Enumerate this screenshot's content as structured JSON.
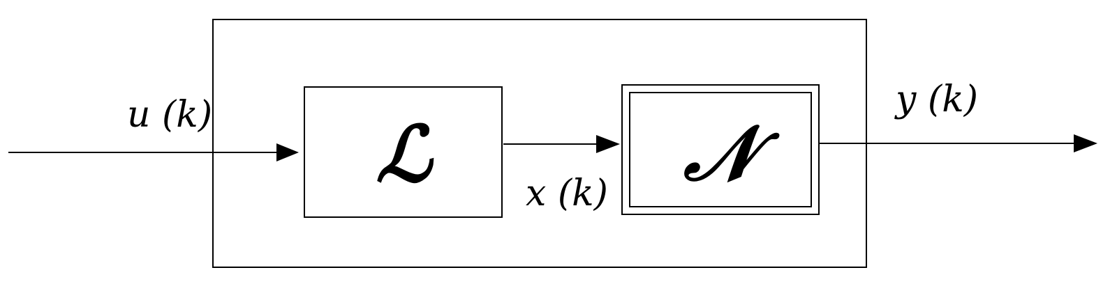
{
  "blocks": {
    "linear": {
      "symbol": "ℒ"
    },
    "nonlinear": {
      "symbol": "𝒩"
    }
  },
  "signals": {
    "input": "u (k)",
    "intermediate": "x (k)",
    "output": "y (k)"
  },
  "colors": {
    "line": "#000000",
    "background": "#ffffff"
  }
}
